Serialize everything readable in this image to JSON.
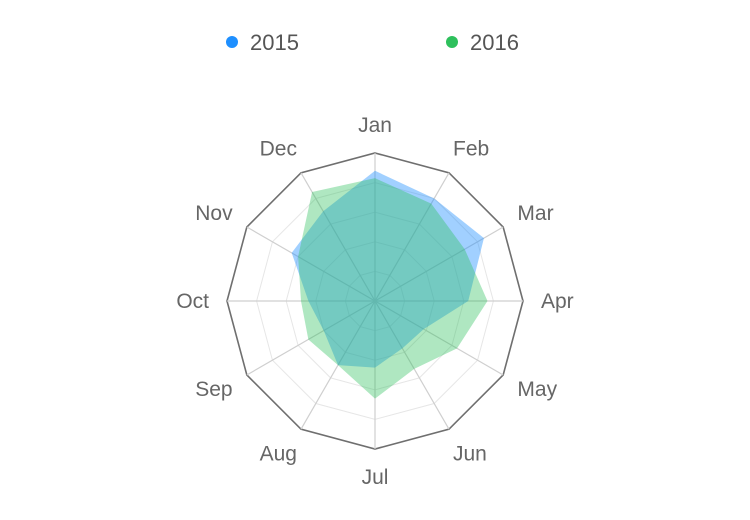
{
  "chart_data": {
    "type": "radar",
    "categories": [
      "Jan",
      "Feb",
      "Mar",
      "Apr",
      "May",
      "Jun",
      "Jul",
      "Aug",
      "Sep",
      "Oct",
      "Nov",
      "Dec"
    ],
    "series": [
      {
        "name": "2015",
        "color": "#1E8FFF",
        "values": [
          88,
          80,
          85,
          63,
          38,
          37,
          45,
          50,
          40,
          45,
          65,
          70
        ]
      },
      {
        "name": "2016",
        "color": "#2EC05C",
        "values": [
          83,
          76,
          70,
          76,
          64,
          53,
          66,
          50,
          52,
          50,
          60,
          85
        ]
      }
    ],
    "rlim": [
      0,
      100
    ],
    "grid": true,
    "legend": "top"
  }
}
